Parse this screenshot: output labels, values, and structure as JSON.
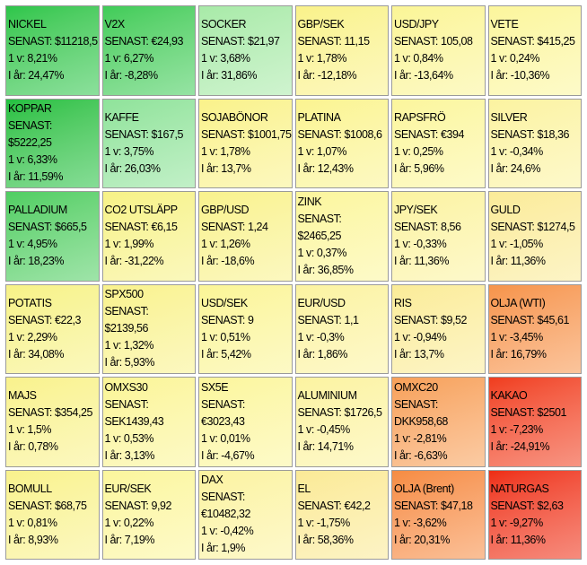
{
  "cells": [
    {
      "lines": [
        "NICKEL",
        "SENAST: $11218,5",
        "1 v: 8,21%",
        "I år: 24,47%"
      ],
      "color": "#2cc64a"
    },
    {
      "lines": [
        "V2X",
        "SENAST: €24,93",
        "1 v: 6,27%",
        "I år: -8,28%"
      ],
      "color": "#3fcc58"
    },
    {
      "lines": [
        "SOCKER",
        "SENAST: $21,97",
        "1 v: 3,68%",
        "I år: 31,86%"
      ],
      "color": "#a8eaa8"
    },
    {
      "lines": [
        "GBP/SEK",
        "SENAST: 11,15",
        "1 v: 1,78%",
        "I år: -12,18%"
      ],
      "color": "#faf28a"
    },
    {
      "lines": [
        "USD/JPY",
        "SENAST: 105,08",
        "1 v: 0,84%",
        "I år: -13,64%"
      ],
      "color": "#fbf596"
    },
    {
      "lines": [
        "VETE",
        "SENAST: $415,25",
        "1 v: 0,24%",
        "I år: -10,36%"
      ],
      "color": "#fcf69c"
    },
    {
      "lines": [
        "KOPPAR",
        "SENAST:",
        "$5222,25",
        "1 v: 6,33%",
        "I år: 11,59%"
      ],
      "color": "#22c040"
    },
    {
      "lines": [
        "KAFFE",
        "SENAST: $167,5",
        "1 v: 3,75%",
        "I år: 26,03%"
      ],
      "color": "#8fe39a"
    },
    {
      "lines": [
        "SOJABÖNOR",
        "SENAST: $1001,75",
        "1 v: 1,78%",
        "I år: 13,7%"
      ],
      "color": "#faf28a"
    },
    {
      "lines": [
        "PLATINA",
        "SENAST: $1008,6",
        "1 v: 1,07%",
        "I år: 12,43%"
      ],
      "color": "#fbf490"
    },
    {
      "lines": [
        "RAPSFRÖ",
        "SENAST: €394",
        "1 v: 0,25%",
        "I år: 5,96%"
      ],
      "color": "#fcf69c"
    },
    {
      "lines": [
        "SILVER",
        "SENAST: $18,36",
        "1 v: -0,34%",
        "I år: 24,6%"
      ],
      "color": "#fcf3a0"
    },
    {
      "lines": [
        "PALLADIUM",
        "SENAST: $665,5",
        "1 v: 4,95%",
        "I år: 18,23%"
      ],
      "color": "#4fce62"
    },
    {
      "lines": [
        "CO2 UTSLÄPP",
        "SENAST: €6,15",
        "1 v: 1,99%",
        "I år: -31,22%"
      ],
      "color": "#f7f286"
    },
    {
      "lines": [
        "GBP/USD",
        "SENAST: 1,24",
        "1 v: 1,26%",
        "I år: -18,6%"
      ],
      "color": "#f9f28c"
    },
    {
      "lines": [
        "ZINK",
        "SENAST:",
        "$2465,25",
        "1 v: 0,37%",
        "I år: 36,85%"
      ],
      "color": "#fcf69c"
    },
    {
      "lines": [
        "JPY/SEK",
        "SENAST: 8,56",
        "1 v: -0,33%",
        "I år: 11,36%"
      ],
      "color": "#fcf3a0"
    },
    {
      "lines": [
        "GULD",
        "SENAST: $1274,5",
        "1 v: -1,05%",
        "I år: 11,36%"
      ],
      "color": "#fbeb98"
    },
    {
      "lines": [
        "POTATIS",
        "SENAST: €22,3",
        "1 v: 2,29%",
        "I år: 34,08%"
      ],
      "color": "#f7f286"
    },
    {
      "lines": [
        "SPX500",
        "SENAST:",
        "$2139,56",
        "1 v: 1,32%",
        "I år: 5,93%"
      ],
      "color": "#f9f28c"
    },
    {
      "lines": [
        "USD/SEK",
        "SENAST: 9",
        "1 v: 0,51%",
        "I år: 5,42%"
      ],
      "color": "#fbf596"
    },
    {
      "lines": [
        "EUR/USD",
        "SENAST: 1,1",
        "1 v: -0,3%",
        "I år: 1,86%"
      ],
      "color": "#fcf3a0"
    },
    {
      "lines": [
        "RIS",
        "SENAST: $9,52",
        "1 v: -0,94%",
        "I år: 13,7%"
      ],
      "color": "#fbec98"
    },
    {
      "lines": [
        "OLJA (WTI)",
        "SENAST: $45,61",
        "1 v: -3,45%",
        "I år: 16,79%"
      ],
      "color": "#f6944a"
    },
    {
      "lines": [
        "MAJS",
        "SENAST: $354,25",
        "1 v: 1,5%",
        "I år: 0,78%"
      ],
      "color": "#f9f28c"
    },
    {
      "lines": [
        "OMXS30",
        "SENAST:",
        "SEK1439,43",
        "1 v: 0,53%",
        "I år: 3,13%"
      ],
      "color": "#fbf596"
    },
    {
      "lines": [
        "SX5E",
        "SENAST:",
        "€3023,43",
        "1 v: 0,01%",
        "I år: -4,67%"
      ],
      "color": "#fcf69c"
    },
    {
      "lines": [
        "ALUMINIUM",
        "SENAST: $1726,5",
        "1 v: -0,45%",
        "I år: 14,71%"
      ],
      "color": "#fcf3a0"
    },
    {
      "lines": [
        "OMXC20",
        "SENAST:",
        "DKK958,68",
        "1 v: -2,81%",
        "I år: -6,63%"
      ],
      "color": "#f7a058"
    },
    {
      "lines": [
        "KAKAO",
        "SENAST: $2501",
        "1 v: -7,23%",
        "I år: -24,91%"
      ],
      "color": "#f03c1c"
    },
    {
      "lines": [
        "BOMULL",
        "SENAST: $68,75",
        "1 v: 0,81%",
        "I år: 8,93%"
      ],
      "color": "#f9f28c"
    },
    {
      "lines": [
        "EUR/SEK",
        "SENAST: 9,92",
        "1 v: 0,22%",
        "I år: 7,19%"
      ],
      "color": "#fcf69c"
    },
    {
      "lines": [
        "DAX",
        "SENAST:",
        "€10482,32",
        "1 v: -0,42%",
        "I år: 1,9%"
      ],
      "color": "#fcf3a0"
    },
    {
      "lines": [
        "EL",
        "SENAST: €42,2",
        "1 v: -1,75%",
        "I år: 58,36%"
      ],
      "color": "#fbea96"
    },
    {
      "lines": [
        "OLJA (Brent)",
        "SENAST: $47,18",
        "1 v: -3,62%",
        "I år: 20,31%"
      ],
      "color": "#f68c42"
    },
    {
      "lines": [
        "NATURGAS",
        "SENAST: $2,63",
        "1 v: -9,27%",
        "I år: 11,36%"
      ],
      "color": "#ee2c12"
    }
  ]
}
